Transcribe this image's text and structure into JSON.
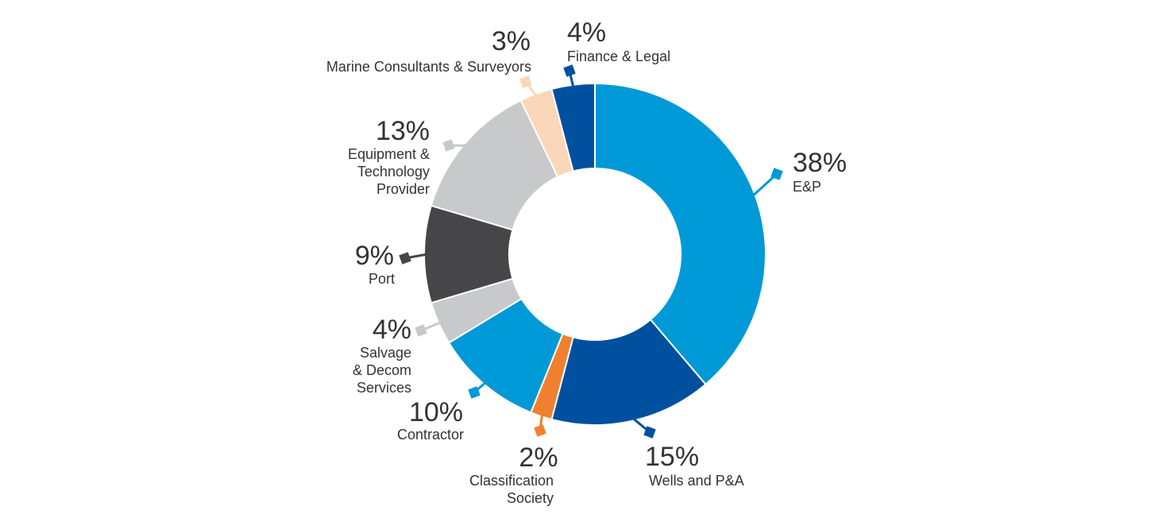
{
  "chart_data": {
    "type": "pie",
    "donut": true,
    "slices": [
      {
        "label": [
          "E&P"
        ],
        "value": 38,
        "value_label": "38%",
        "color": "#0099d8",
        "value_anchor": "start",
        "label_anchor": "start"
      },
      {
        "label": [
          "Wells and P&A"
        ],
        "value": 15,
        "value_label": "15%",
        "color": "#0050a0",
        "value_anchor": "start",
        "label_anchor": "start"
      },
      {
        "label": [
          "Classification",
          "Society"
        ],
        "value": 2,
        "value_label": "2%",
        "color": "#f08030",
        "value_anchor": "middle",
        "label_anchor": "end"
      },
      {
        "label": [
          "Contractor"
        ],
        "value": 10,
        "value_label": "10%",
        "color": "#0099d8",
        "value_anchor": "end",
        "label_anchor": "end"
      },
      {
        "label": [
          "Salvage",
          "& Decom",
          "Services"
        ],
        "value": 4,
        "value_label": "4%",
        "color": "#c8c9cb",
        "value_anchor": "end",
        "label_anchor": "end"
      },
      {
        "label": [
          "Port"
        ],
        "value": 9,
        "value_label": "9%",
        "color": "#464648",
        "value_anchor": "end",
        "label_anchor": "end"
      },
      {
        "label": [
          "Equipment &",
          "Technology",
          "Provider"
        ],
        "value": 13,
        "value_label": "13%",
        "color": "#c8c9cb",
        "value_anchor": "end",
        "label_anchor": "end"
      },
      {
        "label": [
          "Marine Consultants & Surveyors"
        ],
        "value": 3,
        "value_label": "3%",
        "color": "#fad7b8",
        "value_anchor": "end",
        "label_anchor": "end"
      },
      {
        "label": [
          "Finance & Legal"
        ],
        "value": 4,
        "value_label": "4%",
        "color": "#0050a0",
        "value_anchor": "start",
        "label_anchor": "start"
      }
    ]
  }
}
